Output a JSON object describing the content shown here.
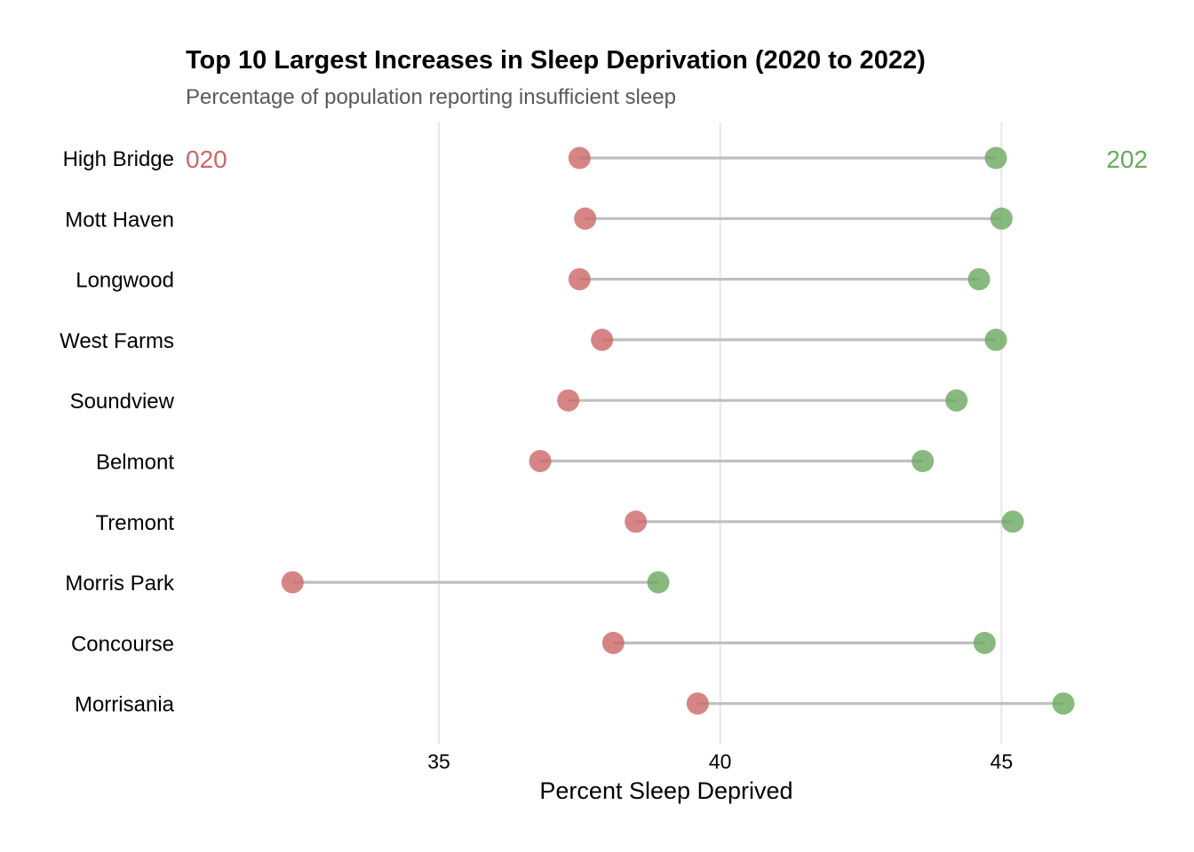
{
  "chart_data": {
    "type": "dumbbell",
    "title": "Top 10 Largest Increases in Sleep Deprivation (2020 to 2022)",
    "subtitle": "Percentage of population reporting insufficient sleep",
    "xlabel": "Percent Sleep Deprived",
    "xlim": [
      30.5,
      47.6
    ],
    "xticks": [
      35,
      40,
      45
    ],
    "grid": "vertical-major",
    "annotations": {
      "left": "020",
      "right": "202"
    },
    "colors": {
      "start": "#cc6666",
      "end": "#6aa85f",
      "segment": "#bfbfbf",
      "grid": "#e6e6e6"
    },
    "series": [
      {
        "name": "",
        "key": "start"
      },
      {
        "name": "",
        "key": "end"
      }
    ],
    "categories": [
      "High Bridge",
      "Mott Haven",
      "Longwood",
      "West Farms",
      "Soundview",
      "Belmont",
      "Tremont",
      "Morris Park",
      "Concourse",
      "Morrisania"
    ],
    "start": [
      37.5,
      37.6,
      37.5,
      37.9,
      37.3,
      36.8,
      38.5,
      32.4,
      38.1,
      39.6
    ],
    "end": [
      44.9,
      45.0,
      44.6,
      44.9,
      44.2,
      43.6,
      45.2,
      38.9,
      44.7,
      46.1
    ]
  }
}
